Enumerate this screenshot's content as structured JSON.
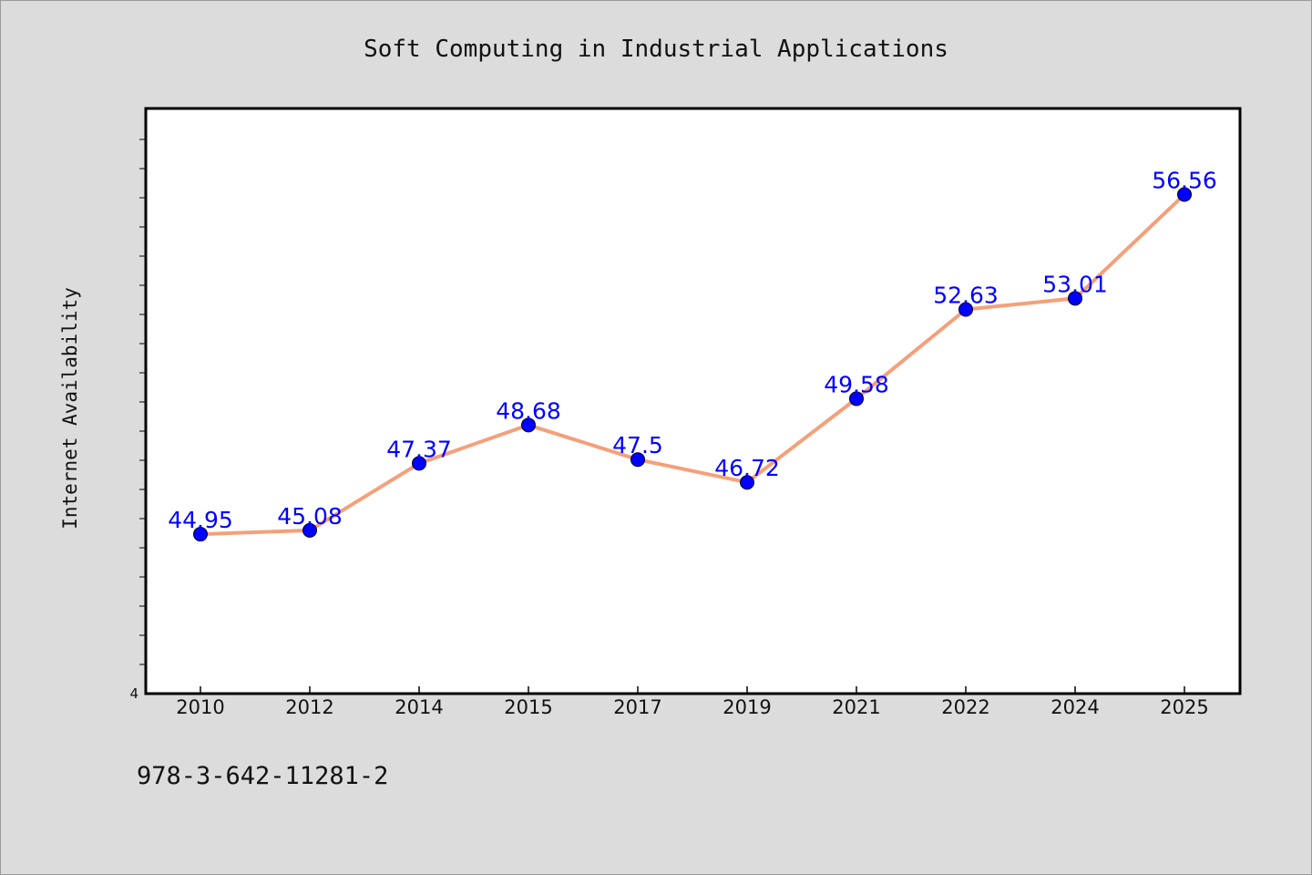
{
  "chart_data": {
    "type": "line",
    "title": "Soft Computing in Industrial Applications",
    "xlabel": "",
    "ylabel": "Internet Availability",
    "categories": [
      "2010",
      "2012",
      "2014",
      "2015",
      "2017",
      "2019",
      "2021",
      "2022",
      "2024",
      "2025"
    ],
    "series": [
      {
        "values": [
          44.95,
          45.08,
          47.37,
          48.68,
          47.5,
          46.72,
          49.58,
          52.63,
          53.01,
          56.56
        ]
      }
    ],
    "y_min_label": "4",
    "ylim": [
      39.5,
      59.5
    ],
    "grid": false,
    "line_color": "#f4a07a",
    "marker_color": "#0000ff",
    "label_color": "#0000ff"
  },
  "footer": {
    "isbn": "978-3-642-11281-2"
  }
}
